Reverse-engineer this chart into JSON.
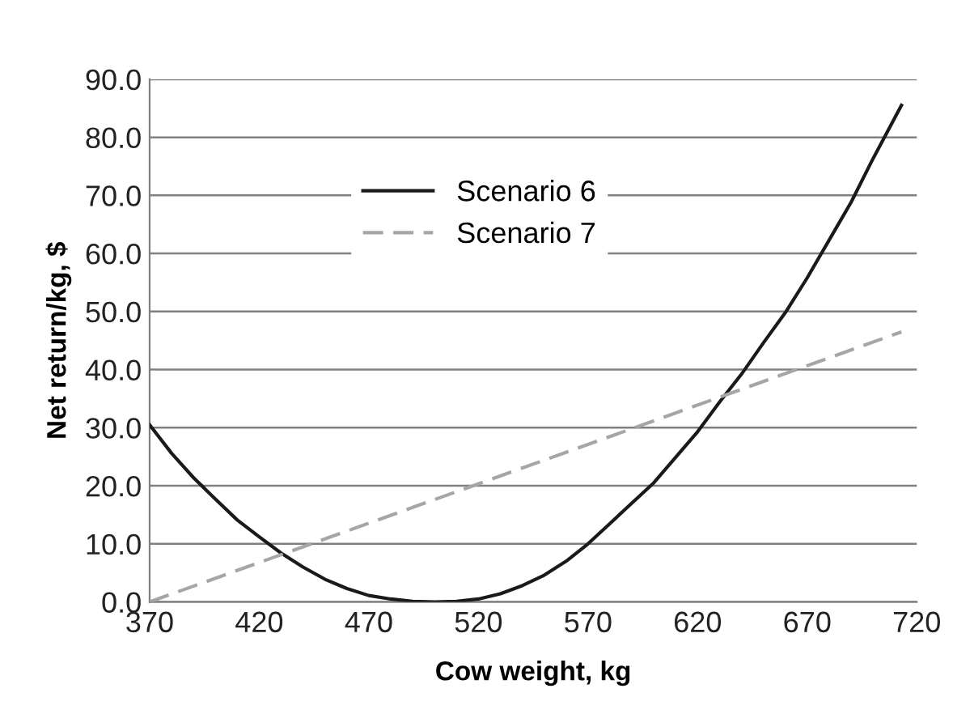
{
  "chart_data": {
    "type": "line",
    "xlabel": "Cow weight, kg",
    "ylabel": "Net return/kg, $",
    "xlim": [
      370,
      720
    ],
    "xticks": [
      370,
      420,
      470,
      520,
      570,
      620,
      670,
      720
    ],
    "ylim": [
      0,
      90
    ],
    "yticks": [
      {
        "value": 0,
        "label": "0.0"
      },
      {
        "value": 10,
        "label": "10.0"
      },
      {
        "value": 20,
        "label": "20.0"
      },
      {
        "value": 30,
        "label": "30.0"
      },
      {
        "value": 40,
        "label": "40.0"
      },
      {
        "value": 50,
        "label": "50.0"
      },
      {
        "value": 60,
        "label": "60.0"
      },
      {
        "value": 70,
        "label": "70.0"
      },
      {
        "value": 80,
        "label": "80.0"
      },
      {
        "value": 90,
        "label": "90.0"
      }
    ],
    "grid": "y",
    "legend": "top center",
    "series": [
      {
        "name": "Scenario 6",
        "color": "#1a1a1a",
        "line_style": "solid",
        "x": [
          370,
          380,
          390,
          400,
          410,
          420,
          430,
          440,
          450,
          460,
          470,
          480,
          490,
          500,
          510,
          520,
          530,
          540,
          550,
          560,
          570,
          580,
          590,
          600,
          610,
          620,
          630,
          640,
          650,
          660,
          670,
          680,
          690,
          700,
          713
        ],
        "values": [
          30.5,
          25.6,
          21.4,
          17.7,
          14.1,
          11.2,
          8.4,
          6.0,
          3.9,
          2.3,
          1.1,
          0.5,
          0.1,
          0,
          0.1,
          0.5,
          1.4,
          2.8,
          4.6,
          7.0,
          10.0,
          13.5,
          17.0,
          20.5,
          24.9,
          29.3,
          34.4,
          39.2,
          44.6,
          49.8,
          55.8,
          62.3,
          68.8,
          76.3,
          85.5
        ]
      },
      {
        "name": "Scenario 7",
        "color": "#a6a6a6",
        "line_style": "dashed",
        "x": [
          370,
          713
        ],
        "values": [
          0,
          46.5
        ]
      }
    ]
  }
}
